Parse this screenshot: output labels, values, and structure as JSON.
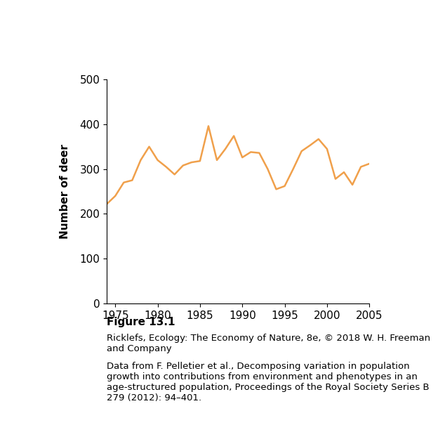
{
  "chart_data": {
    "type": "line",
    "ylabel": "Number of deer",
    "x": [
      1974,
      1975,
      1976,
      1977,
      1978,
      1979,
      1980,
      1981,
      1982,
      1983,
      1984,
      1985,
      1986,
      1987,
      1988,
      1989,
      1990,
      1991,
      1992,
      1993,
      1994,
      1995,
      1996,
      1997,
      1998,
      1999,
      2000,
      2001,
      2002,
      2003,
      2004,
      2005
    ],
    "values": [
      222,
      240,
      270,
      275,
      320,
      350,
      320,
      305,
      288,
      308,
      315,
      318,
      396,
      320,
      345,
      374,
      326,
      338,
      336,
      300,
      255,
      262,
      300,
      340,
      353,
      367,
      345,
      278,
      293,
      265,
      305,
      312
    ],
    "color": "#f0a04b",
    "xlim": [
      1974,
      2005
    ],
    "xticks": [
      1975,
      1980,
      1985,
      1990,
      1995,
      2000,
      2005
    ],
    "ylim": [
      0,
      500
    ],
    "yticks": [
      0,
      100,
      200,
      300,
      400,
      500
    ],
    "grid": false,
    "figure_label": "Figure 13.1",
    "credit": "Ricklefs, Ecology: The Economy of Nature, 8e, © 2018 W. H. Freeman and Company",
    "source": "Data from F. Pelletier et al., Decomposing variation in population growth into contributions from environment and phenotypes in an age-structured population, Proceedings of the Royal Society Series B 279 (2012): 94–401."
  }
}
